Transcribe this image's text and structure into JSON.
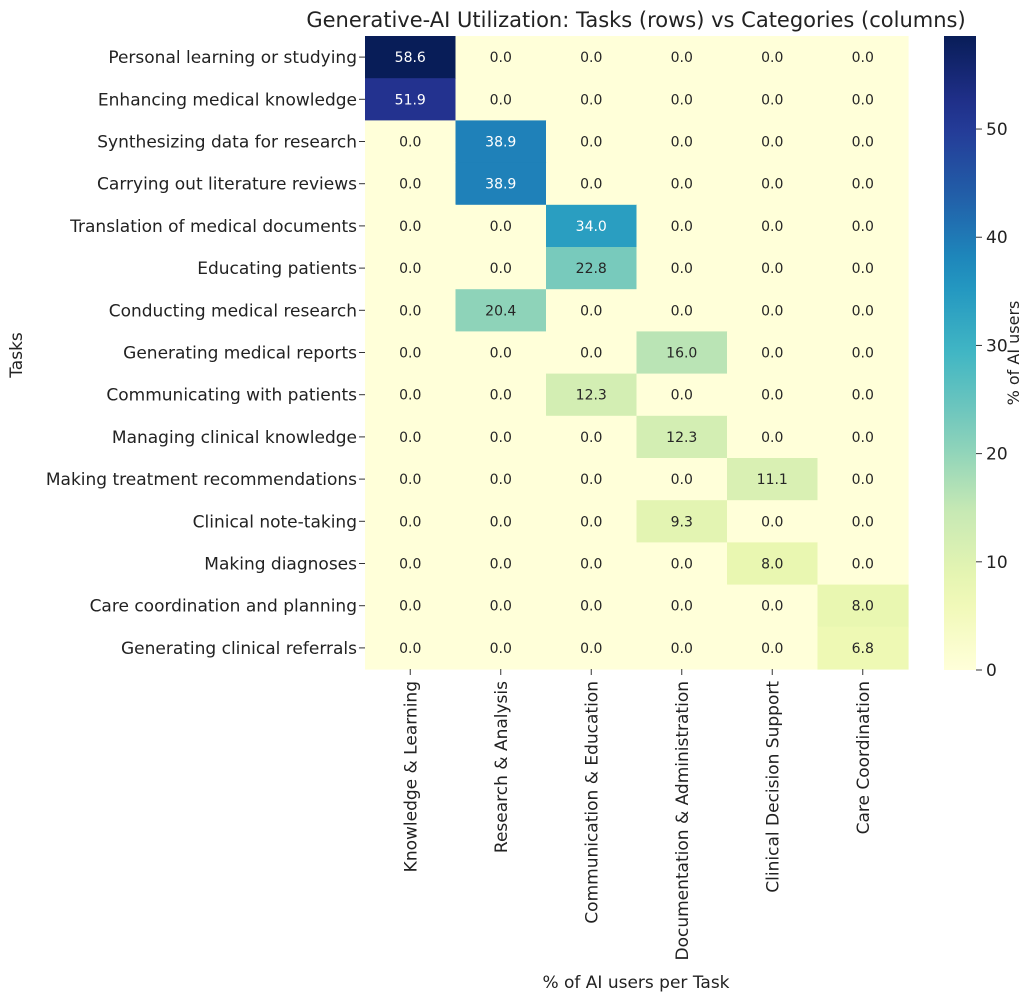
{
  "chart_data": {
    "type": "heatmap",
    "title": "Generative-AI Utilization: Tasks (rows) vs Categories (columns)",
    "xlabel": "% of AI users per Task",
    "ylabel": "Tasks",
    "colorbar_label": "% of AI users",
    "colormap": "YlGnBu",
    "value_range": [
      0,
      58.6
    ],
    "colorbar_ticks": [
      0,
      10,
      20,
      30,
      40,
      50
    ],
    "columns": [
      "Knowledge & Learning",
      "Research & Analysis",
      "Communication & Education",
      "Documentation & Administration",
      "Clinical Decision Support",
      "Care Coordination"
    ],
    "rows": [
      "Personal learning or studying",
      "Enhancing medical knowledge",
      "Synthesizing data for research",
      "Carrying out literature reviews",
      "Translation of medical documents",
      "Educating patients",
      "Conducting medical research",
      "Generating medical reports",
      "Communicating with patients",
      "Managing clinical knowledge",
      "Making treatment recommendations",
      "Clinical note-taking",
      "Making diagnoses",
      "Care coordination and planning",
      "Generating clinical referrals"
    ],
    "values": [
      [
        58.6,
        0.0,
        0.0,
        0.0,
        0.0,
        0.0
      ],
      [
        51.9,
        0.0,
        0.0,
        0.0,
        0.0,
        0.0
      ],
      [
        0.0,
        38.9,
        0.0,
        0.0,
        0.0,
        0.0
      ],
      [
        0.0,
        38.9,
        0.0,
        0.0,
        0.0,
        0.0
      ],
      [
        0.0,
        0.0,
        34.0,
        0.0,
        0.0,
        0.0
      ],
      [
        0.0,
        0.0,
        22.8,
        0.0,
        0.0,
        0.0
      ],
      [
        0.0,
        20.4,
        0.0,
        0.0,
        0.0,
        0.0
      ],
      [
        0.0,
        0.0,
        0.0,
        16.0,
        0.0,
        0.0
      ],
      [
        0.0,
        0.0,
        12.3,
        0.0,
        0.0,
        0.0
      ],
      [
        0.0,
        0.0,
        0.0,
        12.3,
        0.0,
        0.0
      ],
      [
        0.0,
        0.0,
        0.0,
        0.0,
        11.1,
        0.0
      ],
      [
        0.0,
        0.0,
        0.0,
        9.3,
        0.0,
        0.0
      ],
      [
        0.0,
        0.0,
        0.0,
        0.0,
        8.0,
        0.0
      ],
      [
        0.0,
        0.0,
        0.0,
        0.0,
        0.0,
        8.0
      ],
      [
        0.0,
        0.0,
        0.0,
        0.0,
        0.0,
        6.8
      ]
    ]
  }
}
